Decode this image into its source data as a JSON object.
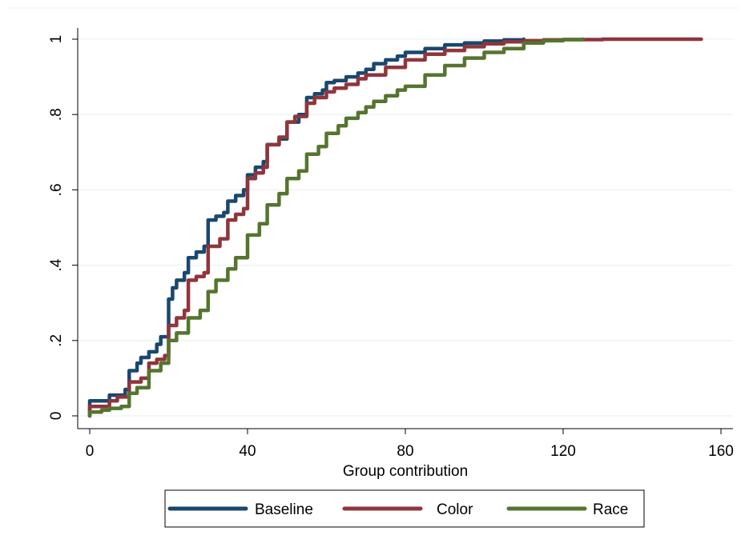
{
  "chart_data": {
    "type": "line",
    "title": "",
    "xlabel": "Group contribution",
    "ylabel": "",
    "xlim": [
      0,
      160
    ],
    "ylim": [
      0,
      1
    ],
    "xticks": [
      0,
      40,
      80,
      120,
      160
    ],
    "xtick_labels": [
      "0",
      "40",
      "80",
      "120",
      "160"
    ],
    "yticks": [
      0,
      0.2,
      0.4,
      0.6,
      0.8,
      1
    ],
    "ytick_labels": [
      "0",
      ".2",
      ".4",
      ".6",
      ".8",
      "1"
    ],
    "grid": true,
    "legend_placement": "bottom",
    "series": [
      {
        "name": "Baseline",
        "color": "#1a476f",
        "x": [
          0,
          0,
          5,
          5,
          9,
          10,
          10,
          12,
          13,
          15,
          17,
          18,
          20,
          20,
          21,
          22,
          24,
          25,
          25,
          27,
          29,
          30,
          30,
          32,
          34,
          35,
          35,
          37,
          39,
          40,
          40,
          42,
          44,
          45,
          45,
          48,
          50,
          50,
          53,
          55,
          55,
          57,
          59,
          60,
          60,
          62,
          65,
          68,
          70,
          72,
          75,
          78,
          80,
          85,
          90,
          95,
          100,
          105,
          110
        ],
        "y": [
          0.0,
          0.04,
          0.045,
          0.055,
          0.07,
          0.09,
          0.12,
          0.14,
          0.155,
          0.17,
          0.19,
          0.21,
          0.225,
          0.31,
          0.34,
          0.36,
          0.38,
          0.39,
          0.42,
          0.435,
          0.45,
          0.46,
          0.52,
          0.53,
          0.54,
          0.545,
          0.57,
          0.585,
          0.6,
          0.61,
          0.64,
          0.66,
          0.675,
          0.685,
          0.72,
          0.735,
          0.75,
          0.78,
          0.8,
          0.815,
          0.845,
          0.855,
          0.865,
          0.875,
          0.885,
          0.89,
          0.9,
          0.91,
          0.92,
          0.935,
          0.945,
          0.955,
          0.965,
          0.975,
          0.985,
          0.99,
          0.995,
          0.998,
          1.0
        ]
      },
      {
        "name": "Color",
        "color": "#90353b",
        "x": [
          0,
          0,
          5,
          7,
          10,
          10,
          13,
          15,
          15,
          17,
          19,
          20,
          20,
          22,
          24,
          25,
          25,
          27,
          29,
          30,
          30,
          33,
          35,
          35,
          37,
          39,
          40,
          40,
          42,
          44,
          45,
          45,
          48,
          50,
          50,
          52,
          55,
          55,
          57,
          60,
          62,
          65,
          68,
          70,
          75,
          80,
          85,
          90,
          95,
          100,
          105,
          110,
          115,
          120,
          130,
          140,
          150,
          155
        ],
        "y": [
          0.0,
          0.025,
          0.04,
          0.05,
          0.06,
          0.09,
          0.1,
          0.11,
          0.14,
          0.15,
          0.16,
          0.17,
          0.24,
          0.26,
          0.28,
          0.29,
          0.36,
          0.37,
          0.38,
          0.39,
          0.45,
          0.47,
          0.48,
          0.52,
          0.535,
          0.55,
          0.56,
          0.63,
          0.645,
          0.66,
          0.67,
          0.72,
          0.74,
          0.75,
          0.78,
          0.795,
          0.81,
          0.83,
          0.845,
          0.86,
          0.87,
          0.88,
          0.895,
          0.905,
          0.925,
          0.945,
          0.96,
          0.97,
          0.98,
          0.988,
          0.993,
          0.996,
          0.998,
          0.999,
          1.0,
          1.0,
          1.0,
          1.0
        ]
      },
      {
        "name": "Race",
        "color": "#55752f",
        "x": [
          0,
          0,
          3,
          5,
          8,
          10,
          10,
          12,
          15,
          15,
          18,
          20,
          20,
          22,
          25,
          25,
          28,
          30,
          30,
          32,
          35,
          37,
          40,
          40,
          43,
          45,
          45,
          48,
          50,
          50,
          53,
          55,
          55,
          58,
          60,
          60,
          63,
          65,
          68,
          70,
          72,
          75,
          78,
          80,
          85,
          90,
          95,
          100,
          105,
          110,
          115,
          120,
          125
        ],
        "y": [
          0.0,
          0.01,
          0.015,
          0.02,
          0.025,
          0.035,
          0.06,
          0.075,
          0.09,
          0.12,
          0.14,
          0.16,
          0.2,
          0.22,
          0.24,
          0.26,
          0.28,
          0.29,
          0.33,
          0.36,
          0.39,
          0.42,
          0.44,
          0.48,
          0.51,
          0.53,
          0.56,
          0.59,
          0.61,
          0.63,
          0.65,
          0.665,
          0.695,
          0.715,
          0.735,
          0.75,
          0.77,
          0.79,
          0.805,
          0.82,
          0.835,
          0.85,
          0.865,
          0.875,
          0.905,
          0.93,
          0.95,
          0.965,
          0.975,
          0.99,
          0.996,
          0.999,
          1.0
        ]
      }
    ]
  }
}
